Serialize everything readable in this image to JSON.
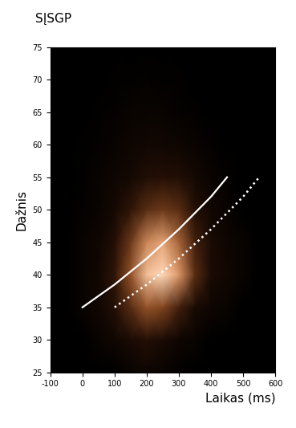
{
  "chart_data": {
    "type": "heatmap",
    "title": "SĮSGP",
    "x_label": "Laikas (ms)",
    "y_label": "Dažnis",
    "xlim": [
      -100,
      600
    ],
    "ylim": [
      25,
      75
    ],
    "xticks": [
      -100,
      0,
      100,
      200,
      300,
      400,
      500,
      600
    ],
    "yticks": [
      25,
      30,
      35,
      40,
      45,
      50,
      55,
      60,
      65,
      70,
      75
    ],
    "grid": false,
    "heatmap": {
      "x": [
        -100,
        -50,
        0,
        50,
        100,
        150,
        200,
        250,
        300,
        350,
        400,
        450,
        500,
        550,
        600
      ],
      "y": [
        25,
        30,
        35,
        40,
        45,
        50,
        55,
        60,
        65,
        70,
        75
      ],
      "cells": [
        [
          0,
          0,
          0,
          0,
          0,
          0.05,
          0.08,
          0.05,
          0.02,
          0,
          0,
          0,
          0,
          0,
          0
        ],
        [
          0,
          0,
          0,
          0.05,
          0.1,
          0.15,
          0.2,
          0.15,
          0.08,
          0.05,
          0,
          0,
          0,
          0,
          0
        ],
        [
          0,
          0,
          0.05,
          0.1,
          0.2,
          0.35,
          0.5,
          0.45,
          0.3,
          0.15,
          0.08,
          0.05,
          0,
          0,
          0
        ],
        [
          0,
          0,
          0.05,
          0.1,
          0.25,
          0.5,
          0.85,
          0.95,
          0.7,
          0.35,
          0.15,
          0.1,
          0.05,
          0,
          0
        ],
        [
          0,
          0,
          0.05,
          0.08,
          0.2,
          0.4,
          0.65,
          0.75,
          0.55,
          0.3,
          0.15,
          0.08,
          0.05,
          0,
          0
        ],
        [
          0,
          0,
          0.03,
          0.05,
          0.12,
          0.25,
          0.35,
          0.4,
          0.35,
          0.2,
          0.1,
          0.05,
          0,
          0,
          0
        ],
        [
          0,
          0,
          0.02,
          0.05,
          0.08,
          0.12,
          0.18,
          0.2,
          0.18,
          0.12,
          0.05,
          0.03,
          0,
          0,
          0
        ],
        [
          0,
          0,
          0.02,
          0.03,
          0.05,
          0.08,
          0.1,
          0.1,
          0.08,
          0.05,
          0.03,
          0,
          0,
          0,
          0
        ],
        [
          0,
          0,
          0,
          0.02,
          0.03,
          0.05,
          0.05,
          0.05,
          0.03,
          0.02,
          0,
          0,
          0,
          0,
          0
        ],
        [
          0,
          0,
          0,
          0,
          0.02,
          0.02,
          0.03,
          0.02,
          0.02,
          0,
          0,
          0,
          0,
          0,
          0
        ],
        [
          0,
          0,
          0,
          0,
          0,
          0,
          0,
          0,
          0,
          0,
          0,
          0,
          0,
          0,
          0
        ]
      ]
    },
    "series": [
      {
        "type": "line",
        "color": "#ffffff",
        "line_style": "solid",
        "x": [
          0,
          100,
          200,
          300,
          400,
          450
        ],
        "values": [
          35,
          38.5,
          42.5,
          47,
          52,
          55
        ]
      },
      {
        "type": "line",
        "color": "#ffffff",
        "line_style": "dotted",
        "x": [
          100,
          200,
          300,
          400,
          500,
          550
        ],
        "values": [
          35,
          38.5,
          42.5,
          47,
          52,
          55
        ]
      }
    ]
  }
}
